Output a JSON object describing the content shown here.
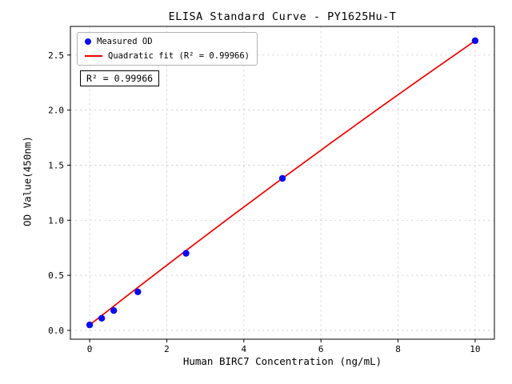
{
  "figure": {
    "background": "#ffffff"
  },
  "chart_data": {
    "type": "scatter",
    "title": "ELISA Standard Curve - PY1625Hu-T",
    "xlabel": "Human BIRC7 Concentration (ng/mL)",
    "ylabel": "OD Value(450nm)",
    "xlim": [
      -0.5,
      10.5
    ],
    "ylim": [
      -0.08,
      2.76
    ],
    "xticks": [
      0,
      2,
      4,
      6,
      8,
      10
    ],
    "xtick_labels": [
      "0",
      "2",
      "4",
      "6",
      "8",
      "10"
    ],
    "yticks": [
      0.0,
      0.5,
      1.0,
      1.5,
      2.0,
      2.5
    ],
    "ytick_labels": [
      "0.0",
      "0.5",
      "1.0",
      "1.5",
      "2.0",
      "2.5"
    ],
    "grid": true,
    "grid_color": "#c9c9c9",
    "frame_color": "#000000",
    "legend_position": "upper-left",
    "annotation": "R² = 0.99966",
    "series": [
      {
        "name": "Measured OD",
        "type": "scatter",
        "color": "#0b0bee",
        "x": [
          0,
          0.3125,
          0.625,
          1.25,
          2.5,
          5,
          10
        ],
        "y": [
          0.05,
          0.11,
          0.18,
          0.35,
          0.7,
          1.38,
          2.63
        ]
      },
      {
        "name": "Quadratic fit (R² = 0.99966)",
        "type": "line",
        "color": "#ee0000",
        "x": [
          0,
          1.25,
          2.5,
          3.75,
          5,
          6.25,
          7.5,
          8.75,
          10
        ],
        "y": [
          0.05,
          0.39,
          0.725,
          1.055,
          1.38,
          1.7,
          2.015,
          2.325,
          2.63
        ]
      }
    ]
  }
}
